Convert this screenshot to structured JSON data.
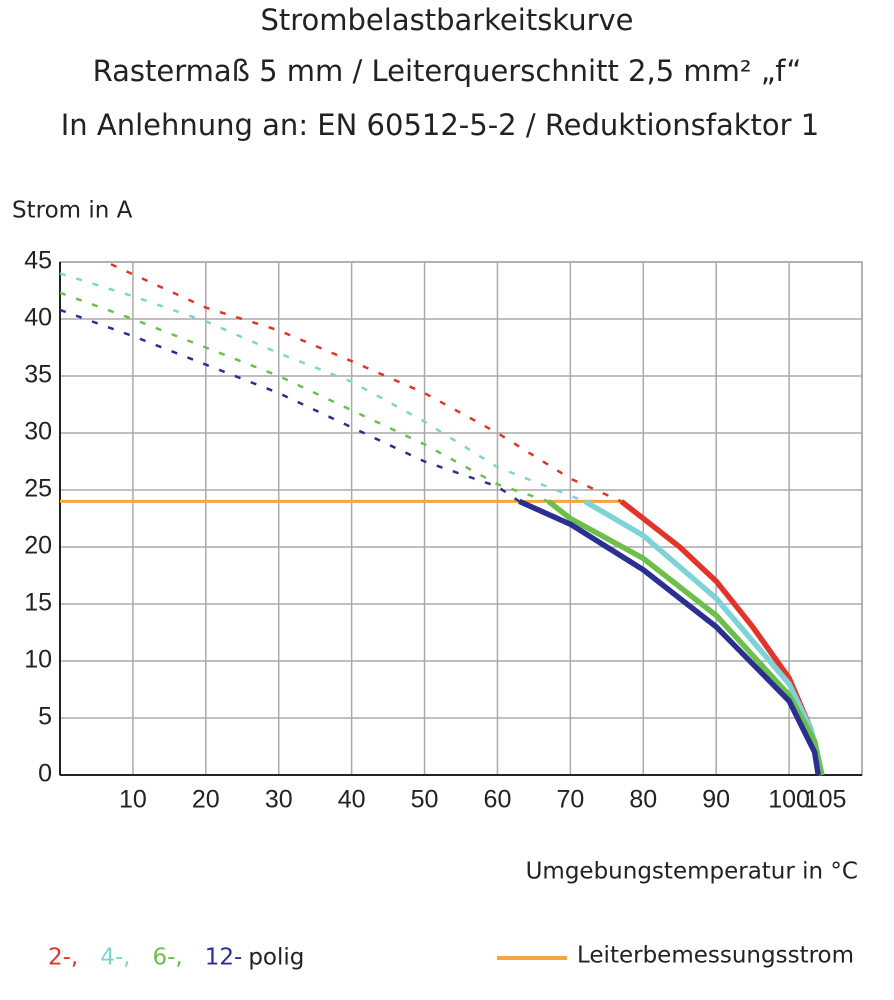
{
  "chart_data": {
    "type": "line",
    "title": [
      "Strombelastbarkeitskurve",
      "Rastermaß 5 mm / Leiterquerschnitt 2,5 mm² „f“",
      "In Anlehnung an: EN 60512-5-2 / Reduktionsfaktor 1"
    ],
    "y_label": "Strom in A",
    "x_label": "Umgebungstemperatur in °C",
    "xlim": [
      0,
      110
    ],
    "xticks": [
      10,
      20,
      30,
      40,
      50,
      60,
      70,
      80,
      90,
      100,
      105
    ],
    "ylim": [
      0,
      45
    ],
    "yticks": [
      0,
      5,
      10,
      15,
      20,
      25,
      30,
      35,
      40,
      45
    ],
    "grid": true,
    "legend_suffix": "polig",
    "series": [
      {
        "name": "2-,",
        "color": "#e2342a",
        "x": [
          7,
          20,
          30,
          40,
          50,
          60,
          70,
          77,
          80,
          85,
          90,
          95,
          100,
          103,
          104.5
        ],
        "values": [
          44.8,
          41,
          39,
          36.3,
          33.5,
          30,
          26,
          24,
          22.5,
          20,
          17,
          13,
          8.5,
          4,
          0
        ]
      },
      {
        "name": "4-,",
        "color": "#7fd3d6",
        "x": [
          0,
          10,
          20,
          30,
          40,
          50,
          60,
          72,
          80,
          90,
          100,
          103,
          104.5
        ],
        "values": [
          44,
          42,
          39.8,
          37,
          34.5,
          31,
          27,
          24,
          21,
          15.5,
          8,
          4,
          0
        ]
      },
      {
        "name": "6-,",
        "color": "#6cbf4b",
        "x": [
          0,
          10,
          20,
          30,
          40,
          50,
          60,
          67,
          70,
          80,
          90,
          100,
          103.5,
          104.5
        ],
        "values": [
          42.3,
          40,
          37.5,
          35,
          32,
          29,
          25.5,
          24,
          22.5,
          19,
          14,
          7,
          3,
          0
        ]
      },
      {
        "name": "12-",
        "color": "#2b2f8f",
        "x": [
          0,
          10,
          20,
          30,
          40,
          50,
          60,
          63,
          70,
          80,
          90,
          100,
          103.5,
          104
        ],
        "values": [
          40.8,
          38.5,
          36,
          33.5,
          30.5,
          27.5,
          25.3,
          24,
          22,
          18,
          13,
          6.5,
          2,
          0
        ]
      }
    ],
    "reference": {
      "name": "Leiterbemessungsstrom",
      "color": "#f4a640",
      "x": [
        0,
        77
      ],
      "values": [
        24,
        24
      ]
    }
  }
}
